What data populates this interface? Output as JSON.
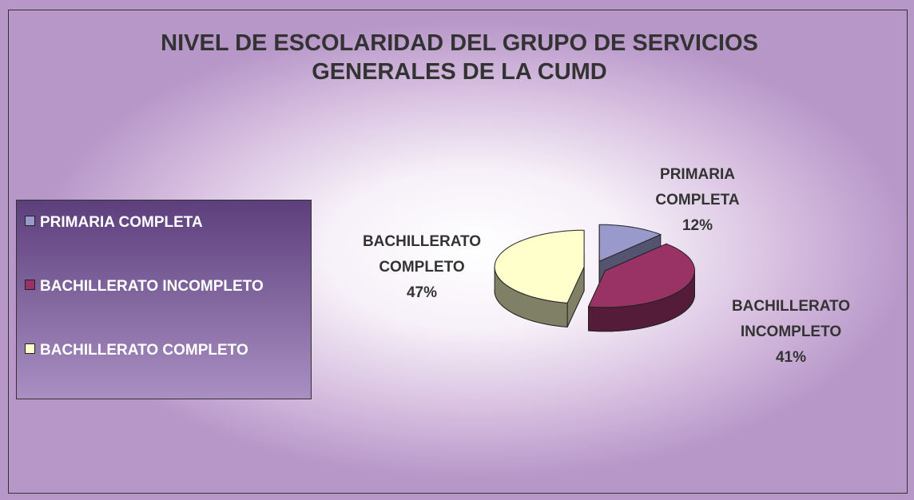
{
  "chart_data": {
    "type": "pie",
    "title": "NIVEL DE ESCOLARIDAD DEL GRUPO DE SERVICIOS GENERALES DE LA CUMD",
    "categories": [
      "PRIMARIA COMPLETA",
      "BACHILLERATO INCOMPLETO",
      "BACHILLERATO COMPLETO"
    ],
    "values": [
      12,
      41,
      47
    ],
    "value_labels": [
      "12%",
      "41%",
      "47%"
    ],
    "colors": [
      "#9999cc",
      "#993366",
      "#ffffcc"
    ],
    "legend": "left"
  }
}
